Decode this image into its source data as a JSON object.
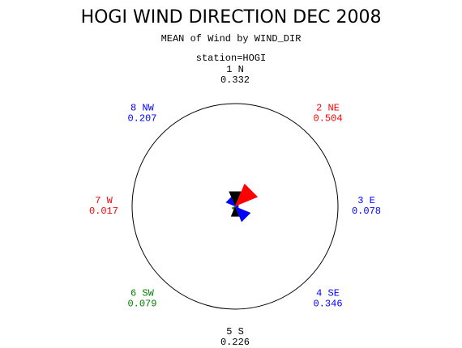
{
  "chart_data": {
    "type": "radar",
    "title": "HOGI WIND DIRECTION DEC 2008",
    "subtitle": "MEAN of Wind by WIND_DIR",
    "station": "station=HOGI",
    "categories": [
      "1 N",
      "2 NE",
      "3 E",
      "4 SE",
      "5 S",
      "6 SW",
      "7 W",
      "8 NW"
    ],
    "values": [
      0.332,
      0.504,
      0.078,
      0.346,
      0.226,
      0.079,
      0.017,
      0.207
    ],
    "colors": [
      "#000000",
      "#ff0000",
      "#0000ff",
      "#0000ff",
      "#000000",
      "#008000",
      "#ff0000",
      "#0000ff"
    ],
    "rlim": [
      0,
      2.1
    ]
  }
}
